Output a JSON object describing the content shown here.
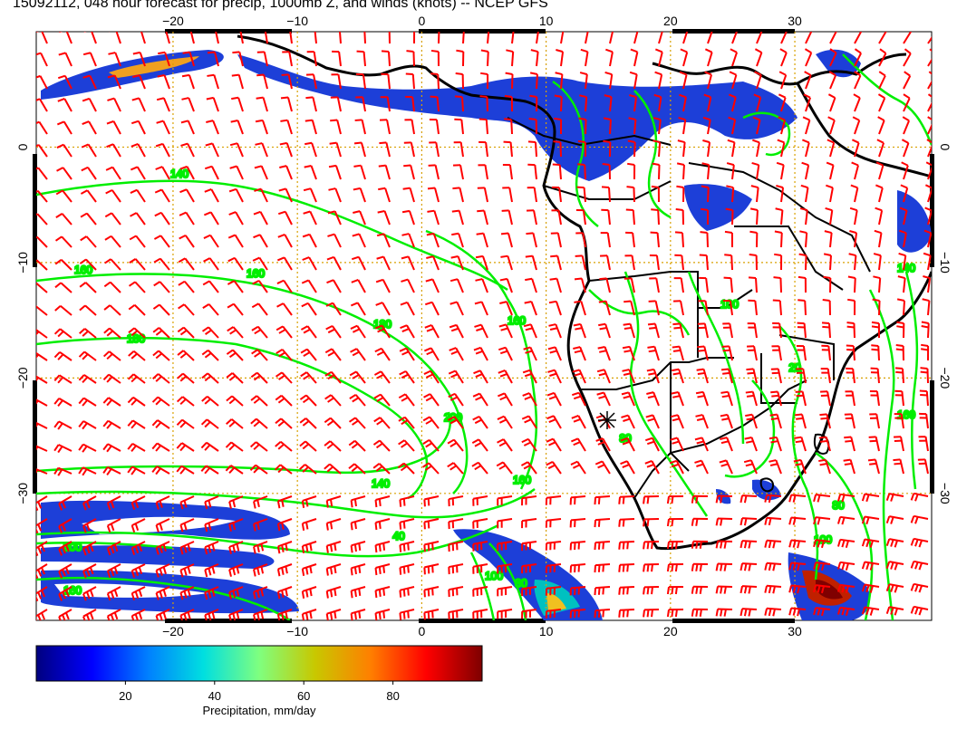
{
  "title": "15092112, 048 hour forecast for precip, 1000mb Z, and winds (knots) -- NCEP GFS",
  "map": {
    "lon_ticks": [
      -20,
      -10,
      0,
      10,
      20,
      30
    ],
    "lat_ticks": [
      0,
      -10,
      -20,
      -30
    ],
    "lon_range": [
      -31,
      41
    ],
    "lat_range": [
      -41,
      10
    ],
    "grid": true
  },
  "contours": {
    "color": "#00ee00",
    "labels": [
      "140",
      "160",
      "160",
      "180",
      "180",
      "160",
      "200",
      "160",
      "140",
      "100",
      "80",
      "40",
      "200",
      "160",
      "140",
      "160",
      "80",
      "100",
      "80",
      "20",
      "100"
    ]
  },
  "colorbar": {
    "label": "Precipitation, mm/day",
    "ticks": [
      20,
      40,
      60,
      80
    ],
    "min": 0,
    "max": 100,
    "colors": [
      "#00007f",
      "#0000ff",
      "#007fff",
      "#00dfe0",
      "#7fff7f",
      "#c8c800",
      "#ff7f00",
      "#ff0000",
      "#7f0000"
    ]
  },
  "wind_color": "#ff0000",
  "coast_color": "#000000"
}
